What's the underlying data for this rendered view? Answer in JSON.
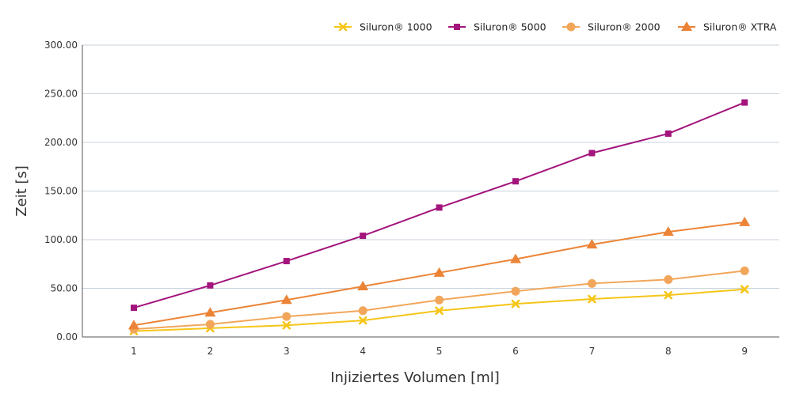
{
  "chart_data": {
    "type": "line",
    "xlabel": "Injiziertes Volumen [ml]",
    "ylabel": "Zeit [s]",
    "x": [
      1,
      2,
      3,
      4,
      5,
      6,
      7,
      8,
      9
    ],
    "x_tick_labels": [
      "1",
      "2",
      "3",
      "4",
      "5",
      "6",
      "7",
      "8",
      "9"
    ],
    "ylim": [
      0,
      300
    ],
    "y_ticks": [
      0,
      50,
      100,
      150,
      200,
      250,
      300
    ],
    "y_tick_labels": [
      "0.00",
      "50.00",
      "100.00",
      "150.00",
      "200.00",
      "250.00",
      "300.00"
    ],
    "grid": "horizontal",
    "legend_position": "top-right",
    "series": [
      {
        "name": "Siluron® 1000",
        "color": "#f5c518",
        "marker": "x-cross",
        "values": [
          6,
          9,
          12,
          17,
          27,
          34,
          39,
          43,
          49
        ]
      },
      {
        "name": "Siluron® 5000",
        "color": "#a3147c",
        "marker": "square",
        "values": [
          30,
          53,
          78,
          104,
          133,
          160,
          189,
          209,
          241
        ]
      },
      {
        "name": "Siluron® 2000",
        "color": "#f2a65a",
        "marker": "circle",
        "values": [
          8,
          13,
          21,
          27,
          38,
          47,
          55,
          59,
          68
        ]
      },
      {
        "name": "Siluron® XTRA",
        "color": "#ec8437",
        "marker": "triangle",
        "values": [
          12,
          25,
          38,
          52,
          66,
          80,
          95,
          108,
          118
        ]
      }
    ]
  }
}
